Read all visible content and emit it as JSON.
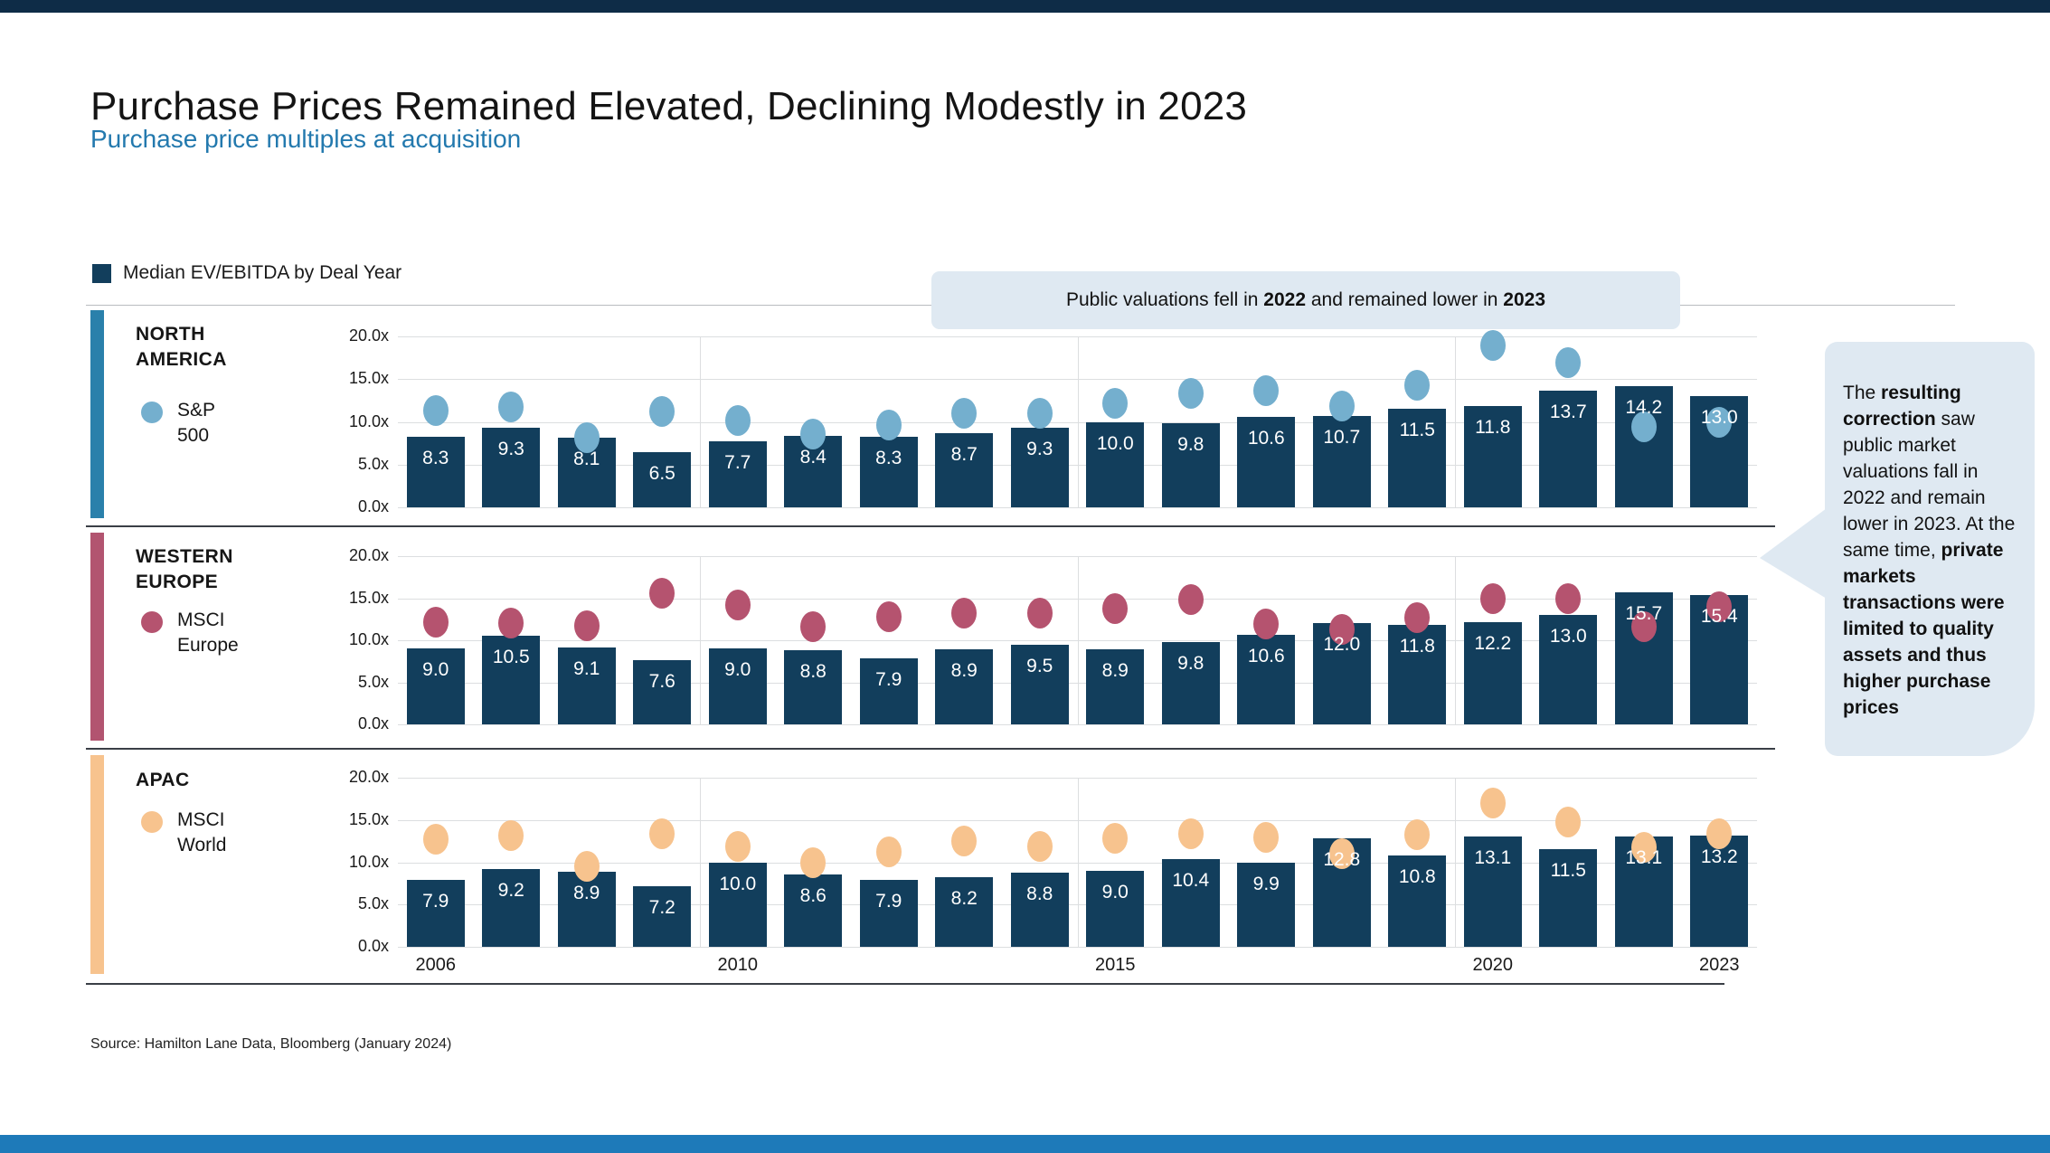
{
  "header": {
    "title": "Purchase Prices Remained Elevated, Declining Modestly in 2023",
    "subtitle": "Purchase price multiples at acquisition"
  },
  "legend": {
    "label": "Median EV/EBITDA by Deal Year",
    "swatch_color": "#123e5c"
  },
  "callout": {
    "text": "Public valuations fell in 2022 and remained lower in 2023",
    "html": "Public valuations fell in <b>2022</b> and remained lower in <b>2023</b>"
  },
  "annotation": {
    "text": "The resulting correction saw public market valuations fall in 2022 and remain lower in 2023. At the same time, private markets transactions were limited to quality assets and thus higher purchase prices",
    "html": "The <b>resulting correction</b> saw public market valuations fall in 2022 and remain lower in 2023. At the same time, <b>private markets transactions were limited to quality assets and thus higher purchase prices</b>"
  },
  "footer": {
    "source": "Source: Hamilton Lane Data, Bloomberg (January 2024)"
  },
  "colors": {
    "bar": "#123e5c",
    "top_bar": "#0e2c47",
    "bottom_bar": "#1e7ab9",
    "panel_bg": "#ffffff",
    "callout_bg": "#dfe9f2",
    "subtitle_blue": "#2379ae",
    "gridline": "#dcdee0",
    "na_accent": "#2a80ab",
    "na_dot": "#74afce",
    "we_accent": "#b25470",
    "we_dot": "#b5536f",
    "apac_accent": "#f7c38e",
    "apac_dot": "#f7c38e"
  },
  "x_axis": {
    "tick_labels": [
      "2006",
      "2010",
      "2015",
      "2020",
      "2023"
    ],
    "tick_indices": [
      0,
      4,
      9,
      14,
      17
    ]
  },
  "chart_data": [
    {
      "type": "bar",
      "region": "NORTH\nAMERICA",
      "bars_name": "Median EV/EBITDA by Deal Year",
      "dots_name": "S&P\n500",
      "years": [
        2006,
        2007,
        2008,
        2009,
        2010,
        2011,
        2012,
        2013,
        2014,
        2015,
        2016,
        2017,
        2018,
        2019,
        2020,
        2021,
        2022,
        2023
      ],
      "bar_values": [
        8.3,
        9.3,
        8.1,
        6.5,
        7.7,
        8.4,
        8.3,
        8.7,
        9.3,
        10.0,
        9.8,
        10.6,
        10.7,
        11.5,
        11.8,
        13.7,
        14.2,
        13.0
      ],
      "dot_values": [
        11.3,
        11.7,
        8.2,
        11.2,
        10.2,
        8.6,
        9.6,
        11.0,
        11.0,
        12.2,
        13.3,
        13.7,
        11.9,
        14.3,
        18.9,
        16.9,
        9.4,
        10.0
      ],
      "ylim": [
        0,
        20
      ],
      "yticks": [
        "20.0x",
        "15.0x",
        "10.0x",
        "5.0x",
        "0.0x"
      ],
      "dot_color": "#74afce",
      "accent_color": "#2a80ab"
    },
    {
      "type": "bar",
      "region": "WESTERN\nEUROPE",
      "bars_name": "Median EV/EBITDA by Deal Year",
      "dots_name": "MSCI\nEurope",
      "years": [
        2006,
        2007,
        2008,
        2009,
        2010,
        2011,
        2012,
        2013,
        2014,
        2015,
        2016,
        2017,
        2018,
        2019,
        2020,
        2021,
        2022,
        2023
      ],
      "bar_values": [
        9.0,
        10.5,
        9.1,
        7.6,
        9.0,
        8.8,
        7.9,
        8.9,
        9.5,
        8.9,
        9.8,
        10.6,
        12.0,
        11.8,
        12.2,
        13.0,
        15.7,
        15.4
      ],
      "dot_values": [
        12.2,
        12.0,
        11.7,
        15.6,
        14.2,
        11.6,
        12.8,
        13.2,
        13.2,
        13.8,
        14.8,
        11.9,
        11.3,
        12.7,
        14.9,
        14.9,
        11.6,
        14.0
      ],
      "ylim": [
        0,
        20
      ],
      "yticks": [
        "20.0x",
        "15.0x",
        "10.0x",
        "5.0x",
        "0.0x"
      ],
      "dot_color": "#b5536f",
      "accent_color": "#b25470"
    },
    {
      "type": "bar",
      "region": "APAC",
      "bars_name": "Median EV/EBITDA by Deal Year",
      "dots_name": "MSCI\nWorld",
      "years": [
        2006,
        2007,
        2008,
        2009,
        2010,
        2011,
        2012,
        2013,
        2014,
        2015,
        2016,
        2017,
        2018,
        2019,
        2020,
        2021,
        2022,
        2023
      ],
      "bar_values": [
        7.9,
        9.2,
        8.9,
        7.2,
        10.0,
        8.6,
        7.9,
        8.2,
        8.8,
        9.0,
        10.4,
        9.9,
        12.8,
        10.8,
        13.1,
        11.5,
        13.1,
        13.2
      ],
      "dot_values": [
        12.7,
        13.2,
        9.5,
        13.4,
        11.9,
        10.0,
        11.2,
        12.5,
        11.9,
        12.8,
        13.4,
        12.9,
        11.0,
        13.3,
        17.0,
        14.8,
        11.8,
        13.4
      ],
      "ylim": [
        0,
        20
      ],
      "yticks": [
        "20.0x",
        "15.0x",
        "10.0x",
        "5.0x",
        "0.0x"
      ],
      "dot_color": "#f7c38e",
      "accent_color": "#f7c38e"
    }
  ]
}
